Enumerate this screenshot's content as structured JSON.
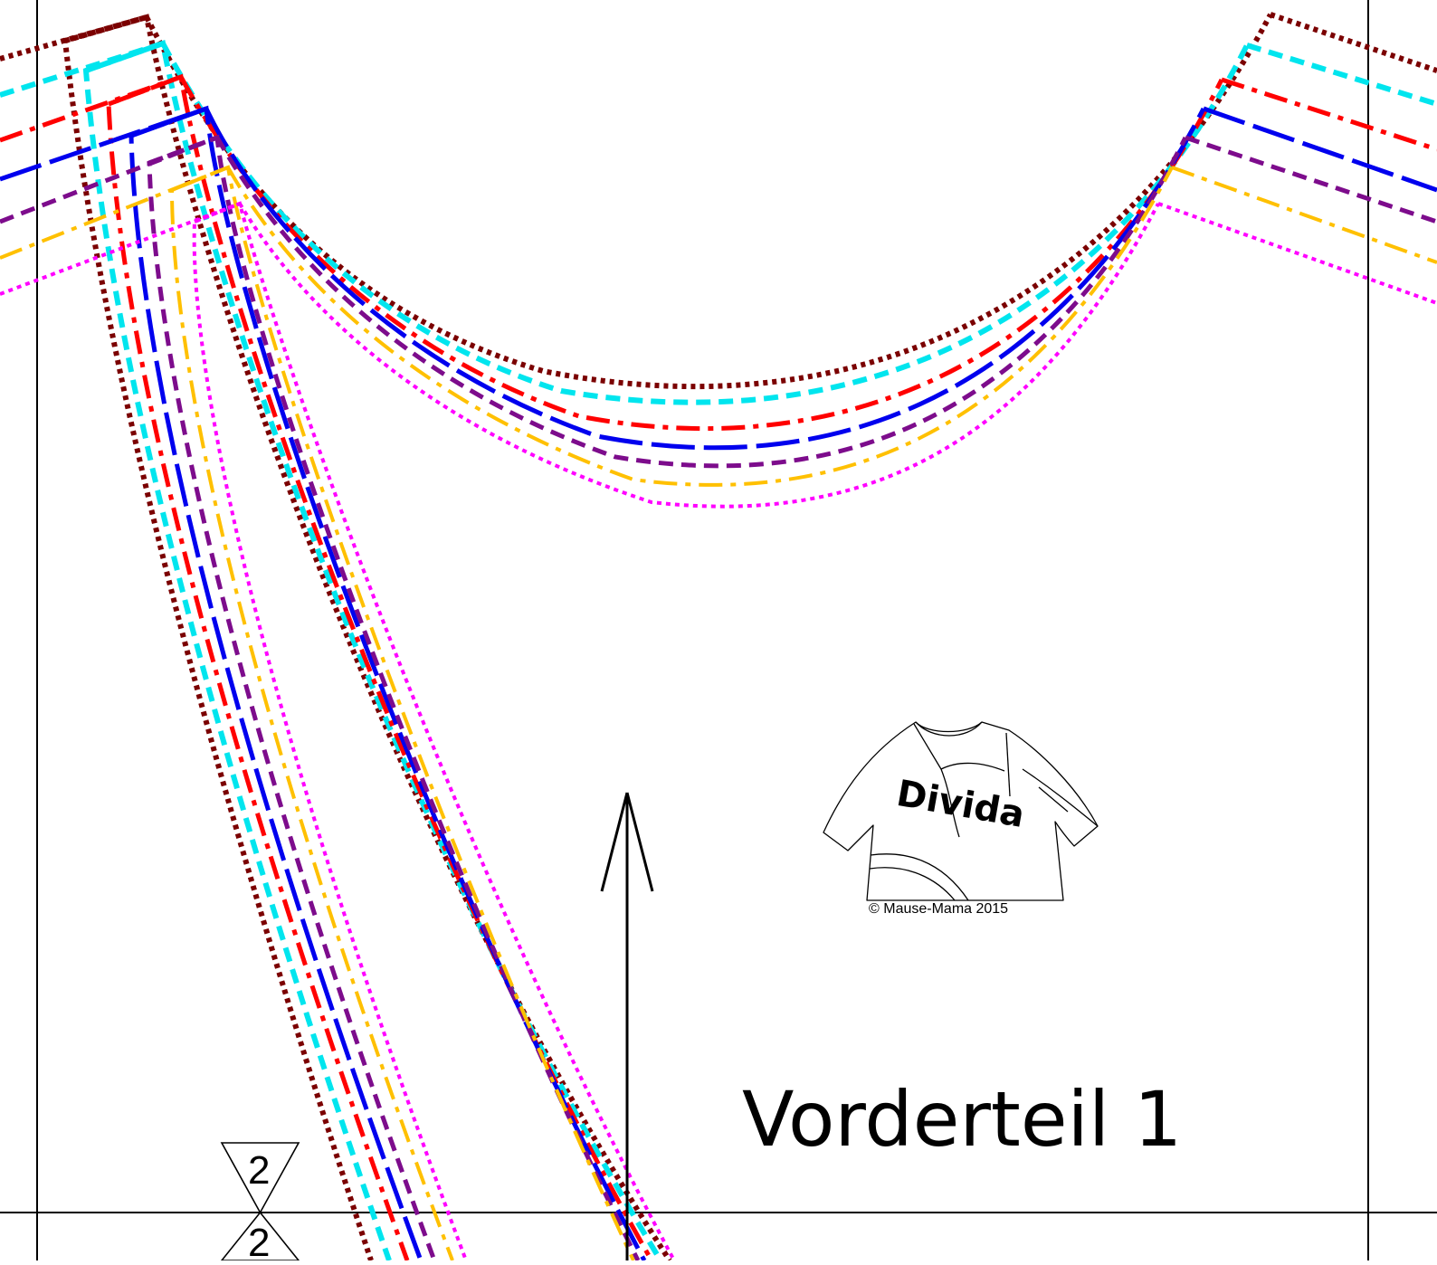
{
  "title": "Vorderteil 1",
  "logo": {
    "brand_text": "Divida",
    "copyright": "© Mause-Mama 2015"
  },
  "notches": [
    {
      "label": "2"
    },
    {
      "label": "2"
    }
  ],
  "size_lines": [
    {
      "color": "#7b0000",
      "style": "dotted"
    },
    {
      "color": "#00e5ee",
      "style": "dashed"
    },
    {
      "color": "#ff0000",
      "style": "dash-dot"
    },
    {
      "color": "#0000ee",
      "style": "long-dash"
    },
    {
      "color": "#7d0c8c",
      "style": "dashed"
    },
    {
      "color": "#ffc000",
      "style": "dash-dot"
    },
    {
      "color": "#ff00ff",
      "style": "dotted"
    }
  ],
  "icons": {
    "grainline": "grainline-arrow-icon",
    "logo": "shirt-sketch-icon"
  }
}
